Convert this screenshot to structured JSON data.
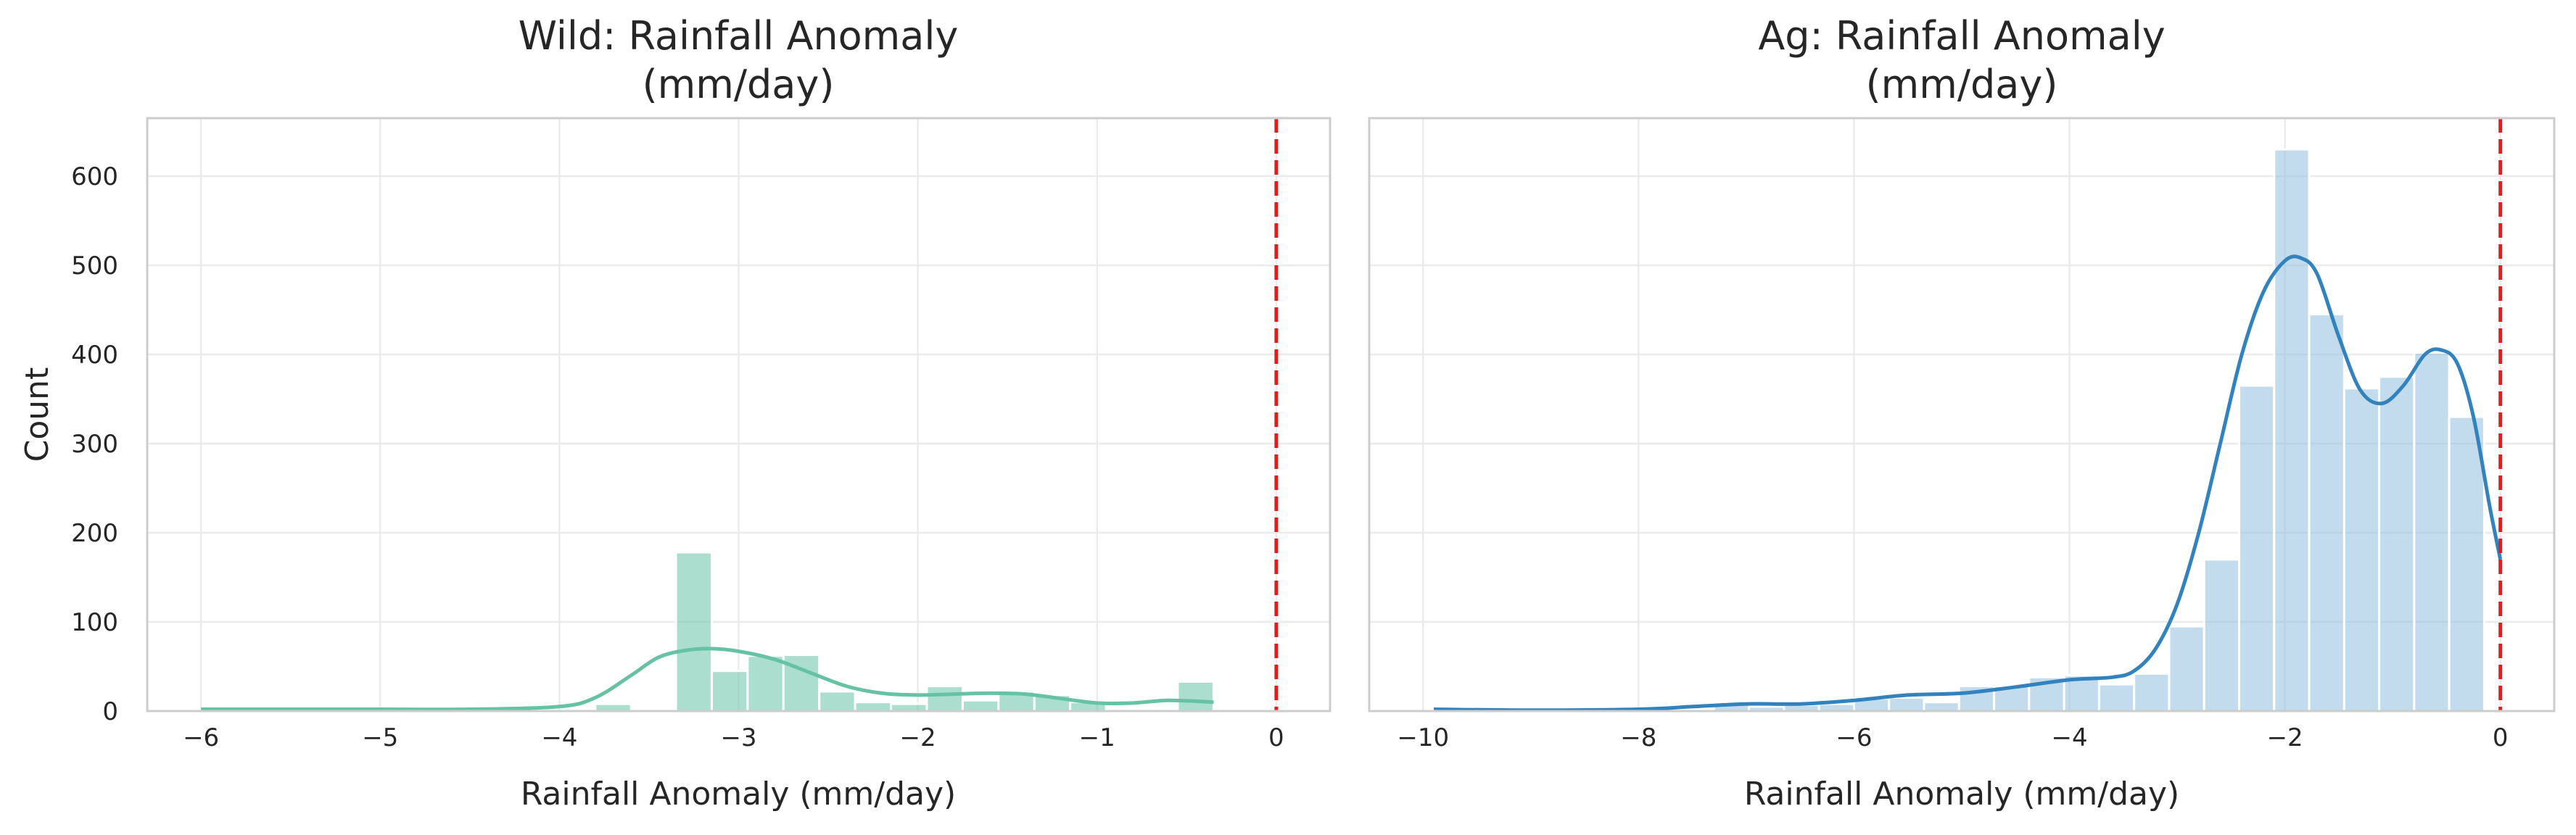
{
  "chart_data": [
    {
      "type": "histogram",
      "title_line1": "Wild: Rainfall Anomaly",
      "title_line2": "(mm/day)",
      "xlabel": "Rainfall Anomaly (mm/day)",
      "ylabel": "Count",
      "xlim": [
        -6.3,
        0.3
      ],
      "ylim": [
        0,
        665
      ],
      "xticks": [
        -6,
        -5,
        -4,
        -3,
        -2,
        -1,
        0
      ],
      "xtick_labels": [
        "−6",
        "−5",
        "−4",
        "−3",
        "−2",
        "−1",
        "0"
      ],
      "yticks": [
        0,
        100,
        200,
        300,
        400,
        500,
        600
      ],
      "ytick_labels": [
        "0",
        "100",
        "200",
        "300",
        "400",
        "500",
        "600"
      ],
      "grid": true,
      "bar_color": "#66c2a5",
      "kde_color": "#66c2a5",
      "reference_line": {
        "x": 0,
        "color": "#e41a1c",
        "style": "dashed"
      },
      "bins": [
        {
          "x0": -6.0,
          "x1": -5.8,
          "count": 2
        },
        {
          "x0": -3.8,
          "x1": -3.6,
          "count": 8
        },
        {
          "x0": -3.55,
          "x1": -3.35,
          "count": 2
        },
        {
          "x0": -3.35,
          "x1": -3.15,
          "count": 178
        },
        {
          "x0": -3.15,
          "x1": -2.95,
          "count": 45
        },
        {
          "x0": -2.95,
          "x1": -2.75,
          "count": 62
        },
        {
          "x0": -2.75,
          "x1": -2.55,
          "count": 63
        },
        {
          "x0": -2.55,
          "x1": -2.35,
          "count": 22
        },
        {
          "x0": -2.35,
          "x1": -2.15,
          "count": 10
        },
        {
          "x0": -2.15,
          "x1": -1.95,
          "count": 8
        },
        {
          "x0": -1.95,
          "x1": -1.75,
          "count": 28
        },
        {
          "x0": -1.75,
          "x1": -1.55,
          "count": 12
        },
        {
          "x0": -1.55,
          "x1": -1.35,
          "count": 22
        },
        {
          "x0": -1.35,
          "x1": -1.15,
          "count": 18
        },
        {
          "x0": -1.15,
          "x1": -0.95,
          "count": 10
        },
        {
          "x0": -0.55,
          "x1": -0.35,
          "count": 33
        }
      ],
      "kde": {
        "x": [
          -6.0,
          -5.0,
          -4.5,
          -4.0,
          -3.8,
          -3.6,
          -3.45,
          -3.3,
          -3.15,
          -3.0,
          -2.8,
          -2.6,
          -2.4,
          -2.2,
          -2.0,
          -1.8,
          -1.6,
          -1.4,
          -1.2,
          -1.0,
          -0.8,
          -0.6,
          -0.35
        ],
        "y": [
          2,
          2,
          2,
          5,
          15,
          40,
          60,
          68,
          70,
          67,
          58,
          43,
          28,
          20,
          18,
          19,
          20,
          19,
          14,
          9,
          9,
          12,
          10
        ]
      }
    },
    {
      "type": "histogram",
      "title_line1": "Ag: Rainfall Anomaly",
      "title_line2": "(mm/day)",
      "xlabel": "Rainfall Anomaly (mm/day)",
      "ylabel": "",
      "xlim": [
        -10.5,
        0.5
      ],
      "ylim": [
        0,
        665
      ],
      "xticks": [
        -10,
        -8,
        -6,
        -4,
        -2,
        0
      ],
      "xtick_labels": [
        "−10",
        "−8",
        "−6",
        "−4",
        "−2",
        "0"
      ],
      "yticks": [
        0,
        100,
        200,
        300,
        400,
        500,
        600
      ],
      "ytick_labels": [
        "",
        "",
        "",
        "",
        "",
        "",
        ""
      ],
      "grid": true,
      "bar_color": "#92c0de",
      "kde_color": "#3182bd",
      "reference_line": {
        "x": 0,
        "color": "#e41a1c",
        "style": "dashed"
      },
      "bins": [
        {
          "x0": -9.9,
          "x1": -9.575,
          "count": 1
        },
        {
          "x0": -7.3,
          "x1": -6.975,
          "count": 7
        },
        {
          "x0": -6.975,
          "x1": -6.65,
          "count": 5
        },
        {
          "x0": -6.65,
          "x1": -6.325,
          "count": 7
        },
        {
          "x0": -6.325,
          "x1": -6.0,
          "count": 8
        },
        {
          "x0": -6.0,
          "x1": -5.675,
          "count": 14
        },
        {
          "x0": -5.675,
          "x1": -5.35,
          "count": 15
        },
        {
          "x0": -5.35,
          "x1": -5.025,
          "count": 10
        },
        {
          "x0": -5.025,
          "x1": -4.7,
          "count": 28
        },
        {
          "x0": -4.7,
          "x1": -4.375,
          "count": 28
        },
        {
          "x0": -4.375,
          "x1": -4.05,
          "count": 38
        },
        {
          "x0": -4.05,
          "x1": -3.725,
          "count": 40
        },
        {
          "x0": -3.725,
          "x1": -3.4,
          "count": 30
        },
        {
          "x0": -3.4,
          "x1": -3.075,
          "count": 42
        },
        {
          "x0": -3.075,
          "x1": -2.75,
          "count": 95
        },
        {
          "x0": -2.75,
          "x1": -2.425,
          "count": 170
        },
        {
          "x0": -2.425,
          "x1": -2.1,
          "count": 365
        },
        {
          "x0": -2.1,
          "x1": -1.775,
          "count": 630
        },
        {
          "x0": -1.775,
          "x1": -1.45,
          "count": 445
        },
        {
          "x0": -1.45,
          "x1": -1.125,
          "count": 362
        },
        {
          "x0": -1.125,
          "x1": -0.8,
          "count": 375
        },
        {
          "x0": -0.8,
          "x1": -0.475,
          "count": 402
        },
        {
          "x0": -0.475,
          "x1": -0.15,
          "count": 330
        },
        {
          "x0": -0.15,
          "x1": 0.0,
          "count": 0
        }
      ],
      "kde": {
        "x": [
          -9.9,
          -9.0,
          -8.0,
          -7.5,
          -7.0,
          -6.5,
          -6.0,
          -5.5,
          -5.0,
          -4.5,
          -4.0,
          -3.6,
          -3.4,
          -3.2,
          -3.0,
          -2.8,
          -2.6,
          -2.4,
          -2.2,
          -2.0,
          -1.85,
          -1.7,
          -1.5,
          -1.3,
          -1.1,
          -0.9,
          -0.7,
          -0.55,
          -0.4,
          -0.25,
          -0.1,
          0.0
        ],
        "y": [
          2,
          1,
          2,
          5,
          8,
          8,
          12,
          18,
          20,
          27,
          35,
          38,
          45,
          70,
          120,
          200,
          300,
          400,
          470,
          505,
          508,
          490,
          420,
          360,
          345,
          365,
          400,
          405,
          390,
          330,
          230,
          170
        ]
      }
    }
  ]
}
